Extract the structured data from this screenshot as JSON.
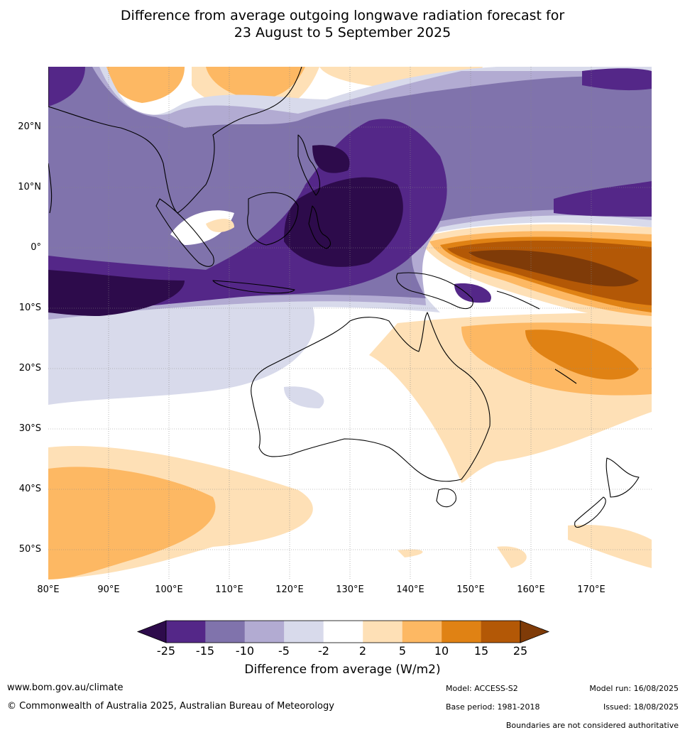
{
  "title_line1": "Difference from average outgoing longwave radiation forecast for",
  "title_line2": "23 August to 5 September 2025",
  "lat_labels": [
    "20°N",
    "10°N",
    "0°",
    "10°S",
    "20°S",
    "30°S",
    "40°S",
    "50°S"
  ],
  "lon_labels": [
    "80°E",
    "90°E",
    "100°E",
    "110°E",
    "120°E",
    "130°E",
    "140°E",
    "150°E",
    "160°E",
    "170°E"
  ],
  "colorbar": {
    "title": "Difference from average (W/m2)",
    "ticks": [
      "-25",
      "-15",
      "-10",
      "-5",
      "-2",
      "2",
      "5",
      "10",
      "15",
      "25"
    ],
    "colors": [
      "#2d0b4b",
      "#542788",
      "#8073ac",
      "#b2abd2",
      "#d8daeb",
      "#ffffff",
      "#fee0b6",
      "#fdb863",
      "#e08214",
      "#b35806",
      "#7f3b08"
    ]
  },
  "footer": {
    "url": "www.bom.gov.au/climate",
    "copyright": "© Commonwealth of Australia 2025, Australian Bureau of Meteorology",
    "model": "Model: ACCESS-S2",
    "base_period": "Base period: 1981-2018",
    "model_run": "Model run: 16/08/2025",
    "issued": "Issued: 18/08/2025",
    "disclaimer": "Boundaries are not considered authoritative"
  }
}
